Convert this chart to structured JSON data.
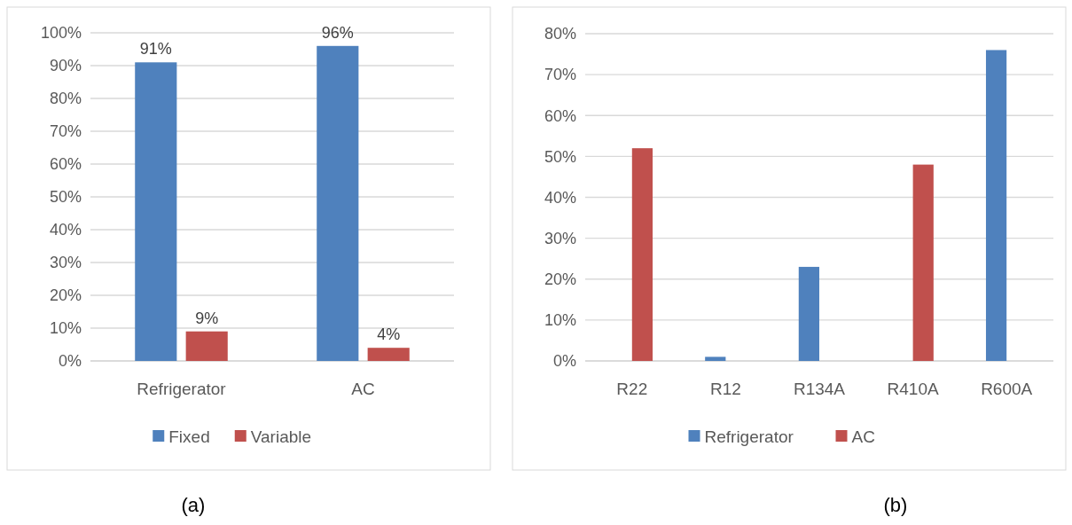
{
  "chart_data": [
    {
      "type": "bar",
      "categories": [
        "Refrigerator",
        "AC"
      ],
      "series": [
        {
          "name": "Fixed",
          "color": "#4f81bd",
          "values": [
            91,
            96
          ],
          "value_labels": [
            "91%",
            "96%"
          ]
        },
        {
          "name": "Variable",
          "color": "#c0504d",
          "values": [
            9,
            4
          ],
          "value_labels": [
            "9%",
            "4%"
          ]
        }
      ],
      "ylim": [
        0,
        100
      ],
      "yticks": [
        {
          "value": 0,
          "label": "0%"
        },
        {
          "value": 10,
          "label": "10%"
        },
        {
          "value": 20,
          "label": "20%"
        },
        {
          "value": 30,
          "label": "30%"
        },
        {
          "value": 40,
          "label": "40%"
        },
        {
          "value": 50,
          "label": "50%"
        },
        {
          "value": 60,
          "label": "60%"
        },
        {
          "value": 70,
          "label": "70%"
        },
        {
          "value": 80,
          "label": "80%"
        },
        {
          "value": 90,
          "label": "90%"
        },
        {
          "value": 100,
          "label": "100%"
        }
      ],
      "grid": "y",
      "legend": "bottom",
      "annotations": [
        "(a)"
      ]
    },
    {
      "type": "bar",
      "categories": [
        "R22",
        "R12",
        "R134A",
        "R410A",
        "R600A"
      ],
      "series": [
        {
          "name": "Refrigerator",
          "color": "#4f81bd",
          "values": [
            null,
            1,
            23,
            null,
            76
          ]
        },
        {
          "name": "AC",
          "color": "#c0504d",
          "values": [
            52,
            null,
            null,
            48,
            null
          ]
        }
      ],
      "ylim": [
        0,
        80
      ],
      "yticks": [
        {
          "value": 0,
          "label": "0%"
        },
        {
          "value": 10,
          "label": "10%"
        },
        {
          "value": 20,
          "label": "20%"
        },
        {
          "value": 30,
          "label": "30%"
        },
        {
          "value": 40,
          "label": "40%"
        },
        {
          "value": 50,
          "label": "50%"
        },
        {
          "value": 60,
          "label": "60%"
        },
        {
          "value": 70,
          "label": "70%"
        },
        {
          "value": 80,
          "label": "80%"
        }
      ],
      "grid": "y",
      "legend": "bottom",
      "annotations": [
        "(b)"
      ]
    }
  ]
}
